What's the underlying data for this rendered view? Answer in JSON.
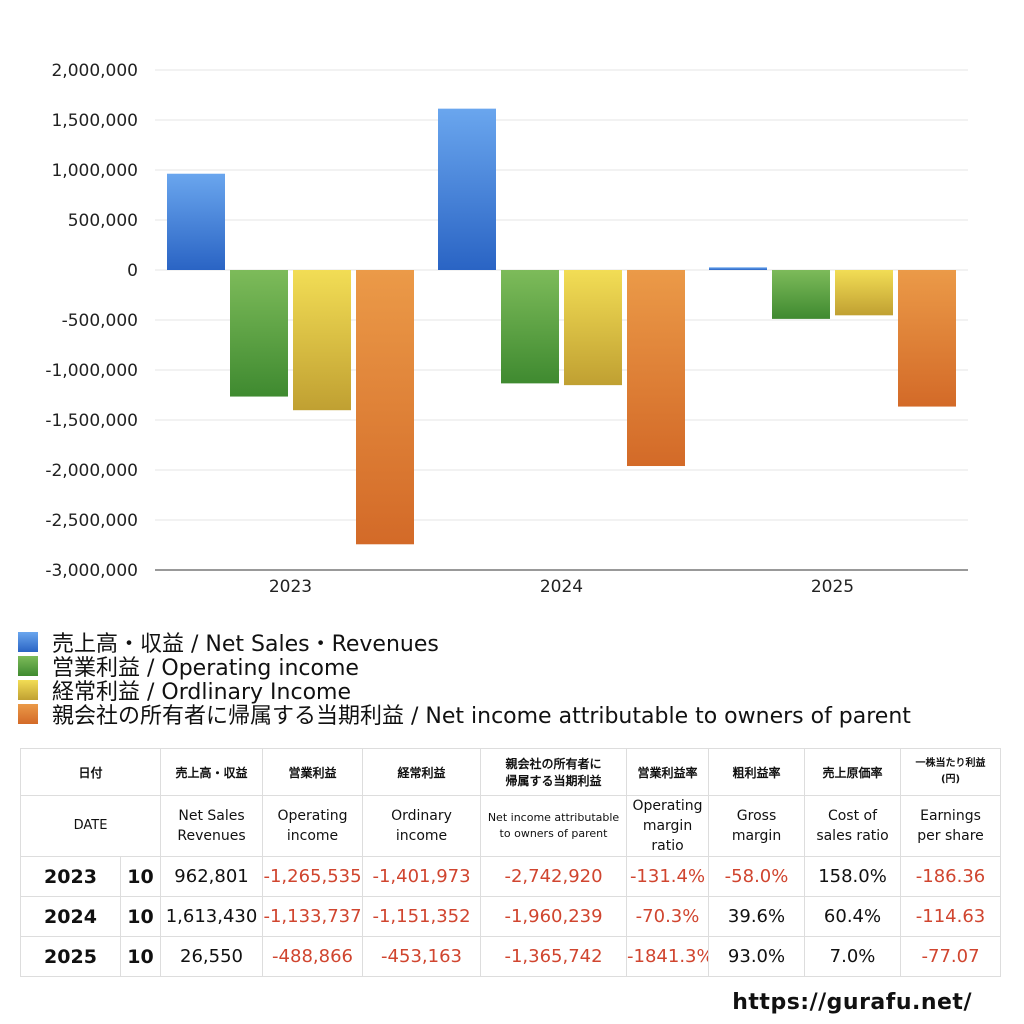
{
  "chart_data": {
    "type": "bar",
    "categories": [
      "2023",
      "2024",
      "2025"
    ],
    "y_ticks": [
      "2,000,000",
      "1,500,000",
      "1,000,000",
      "500,000",
      "0",
      "-500,000",
      "-1,000,000",
      "-1,500,000",
      "-2,000,000",
      "-2,500,000",
      "-3,000,000"
    ],
    "ylim": [
      -3000000,
      2000000
    ],
    "grid": true,
    "legend_position": "bottom",
    "series": [
      {
        "name": "売上高・収益 / Net Sales・Revenues",
        "color": "#3a7ee0",
        "values": [
          962801,
          1613430,
          26550
        ]
      },
      {
        "name": "営業利益 / Operating income",
        "color": "#4f9d3a",
        "values": [
          -1265535,
          -1133737,
          -488866
        ]
      },
      {
        "name": "経常利益 / Ordlinary Income",
        "color": "#e0c23b",
        "values": [
          -1401973,
          -1151352,
          -453163
        ]
      },
      {
        "name": "親会社の所有者に帰属する当期利益 / Net income attributable to owners of parent",
        "color": "#e07a2e",
        "values": [
          -2742920,
          -1960239,
          -1365742
        ]
      }
    ]
  },
  "table": {
    "header_jp": {
      "date": "日付",
      "sales": "売上高・収益",
      "operating": "営業利益",
      "ordinary": "経常利益",
      "net_line1": "親会社の所有者に",
      "net_line2": "帰属する当期利益",
      "op_margin": "営業利益率",
      "gross": "粗利益率",
      "cost": "売上原価率",
      "eps_line1": "一株当たり利益",
      "eps_line2": "(円)"
    },
    "header_en": {
      "date": "DATE",
      "sales_line1": "Net Sales",
      "sales_line2": "Revenues",
      "operating_line1": "Operating",
      "operating_line2": "income",
      "ordinary_line1": "Ordinary",
      "ordinary_line2": "income",
      "net_line1": "Net income attributable",
      "net_line2": "to owners of parent",
      "op_margin_line1": "Operating",
      "op_margin_line2": "margin",
      "op_margin_line3": "ratio",
      "gross_line1": "Gross",
      "gross_line2": "margin",
      "cost_line1": "Cost of",
      "cost_line2": "sales ratio",
      "eps_line1": "Earnings",
      "eps_line2": "per share"
    },
    "rows": [
      {
        "year": "2023",
        "month": "10",
        "sales": "962,801",
        "operating": "-1,265,535",
        "ordinary": "-1,401,973",
        "net": "-2,742,920",
        "op_margin": "-131.4%",
        "gross": "-58.0%",
        "cost": "158.0%",
        "eps": "-186.36"
      },
      {
        "year": "2024",
        "month": "10",
        "sales": "1,613,430",
        "operating": "-1,133,737",
        "ordinary": "-1,151,352",
        "net": "-1,960,239",
        "op_margin": "-70.3%",
        "gross": "39.6%",
        "cost": "60.4%",
        "eps": "-114.63"
      },
      {
        "year": "2025",
        "month": "10",
        "sales": "26,550",
        "operating": "-488,866",
        "ordinary": "-453,163",
        "net": "-1,365,742",
        "op_margin": "-1841.3%",
        "gross": "93.0%",
        "cost": "7.0%",
        "eps": "-77.07"
      }
    ]
  },
  "footer": {
    "url": "https://gurafu.net/"
  }
}
